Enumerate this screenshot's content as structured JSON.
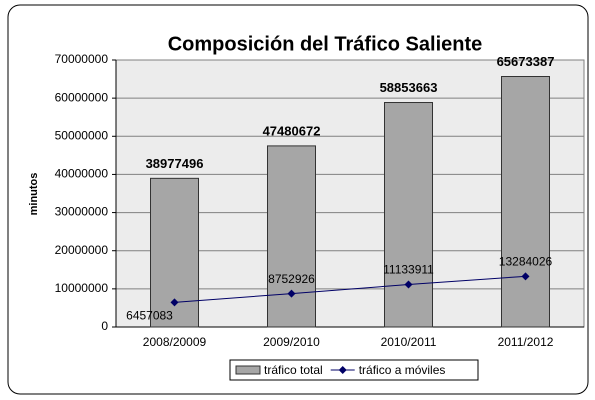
{
  "chart_data": {
    "type": "bar",
    "title": "Composición del Tráfico Saliente",
    "y_label": "minutos",
    "categories": [
      "2008/20009",
      "2009/2010",
      "2010/2011",
      "2011/2012"
    ],
    "series": [
      {
        "name": "tráfico total",
        "type": "bar",
        "color": "#a6a6a6",
        "values": [
          38977496,
          47480672,
          58853663,
          65673387
        ]
      },
      {
        "name": "tráfico a móviles",
        "type": "line",
        "color": "#000066",
        "values": [
          6457083,
          8752926,
          11133911,
          13284026
        ]
      }
    ],
    "ylim": [
      0,
      70000000
    ],
    "yticks": [
      0,
      10000000,
      20000000,
      30000000,
      40000000,
      50000000,
      60000000,
      70000000
    ],
    "grid": true,
    "legend": "bottom"
  }
}
